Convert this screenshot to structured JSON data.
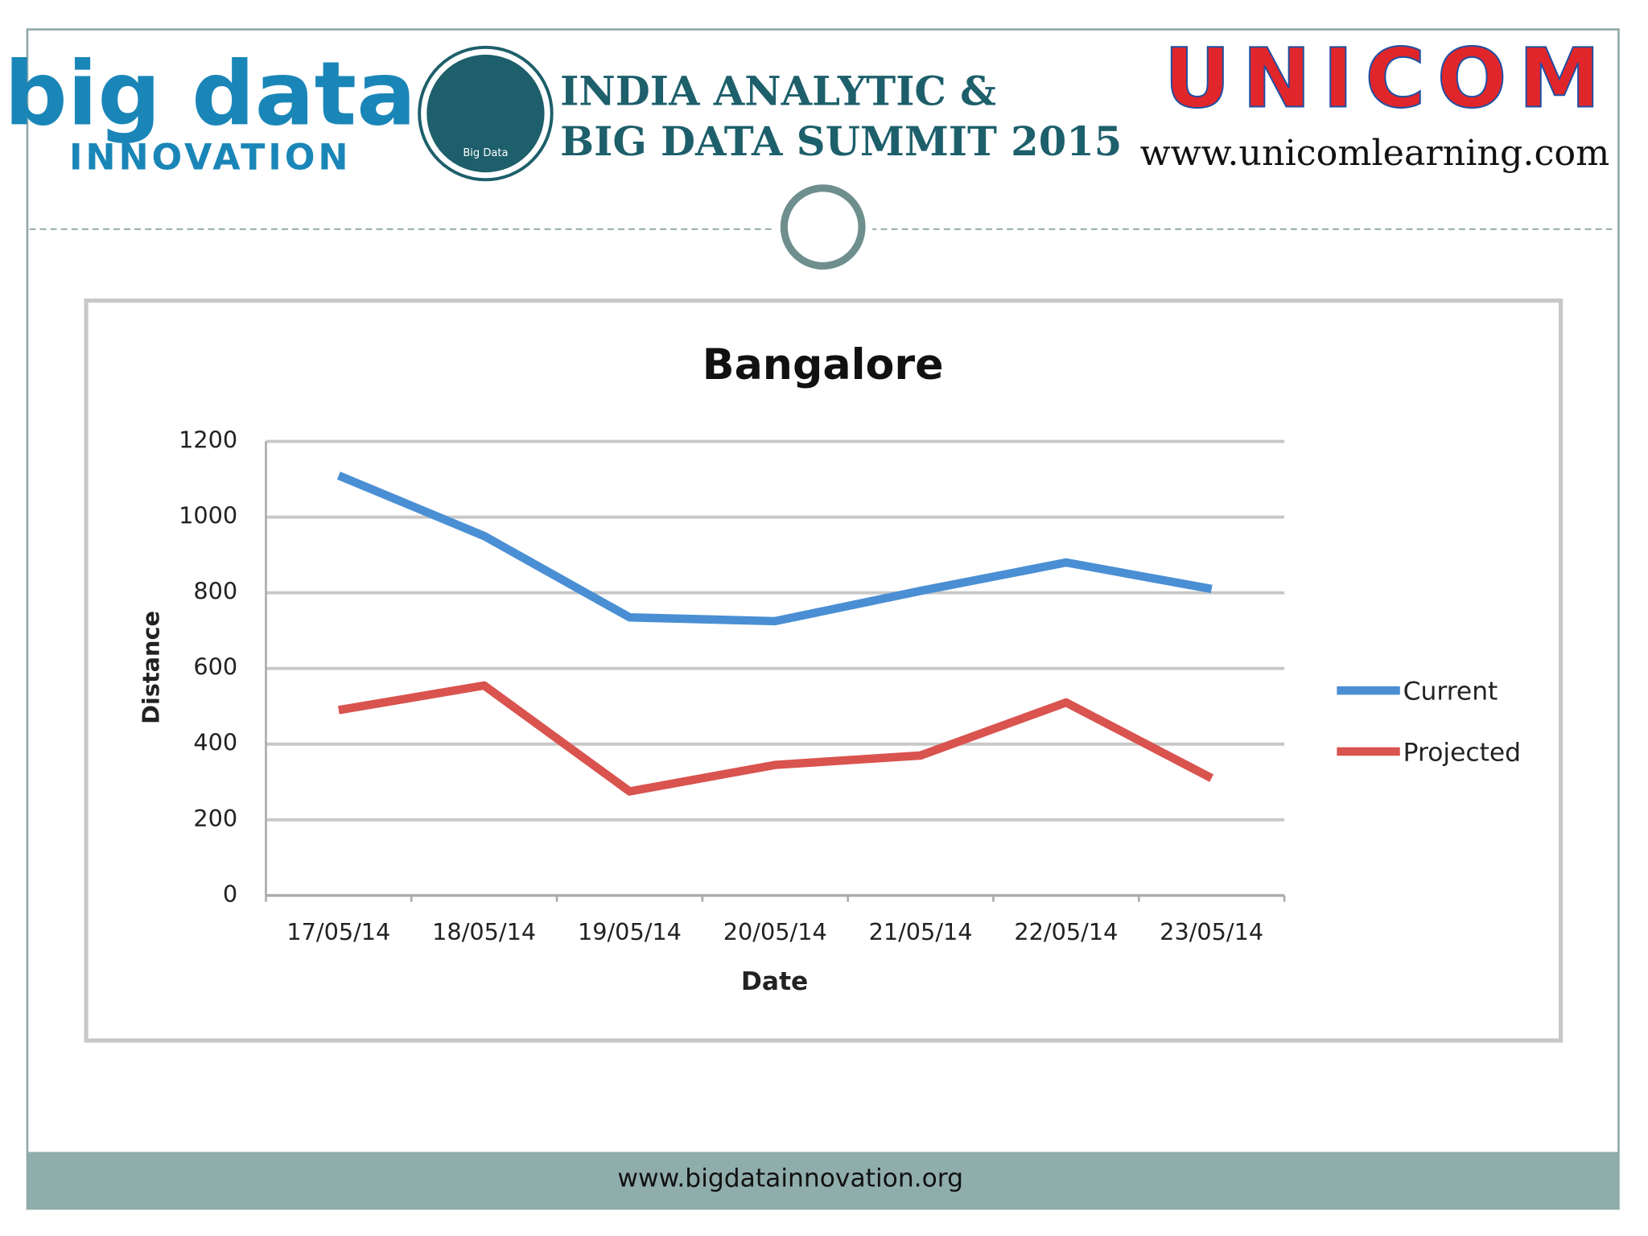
{
  "header": {
    "logo_top": "big data",
    "logo_bottom": "INNOVATION",
    "badge": "Big Data",
    "summit_line1": "INDIA ANALYTIC &",
    "summit_line2": "BIG DATA SUMMIT 2015",
    "unicom": "UNICOM",
    "unicom_url": "www.unicomlearning.com"
  },
  "footer": {
    "url": "www.bigdatainnovation.org"
  },
  "chart_data": {
    "type": "line",
    "title": "Bangalore",
    "x_label": "Date",
    "y_label": "Distance",
    "categories": [
      "17/05/14",
      "18/05/14",
      "19/05/14",
      "20/05/14",
      "21/05/14",
      "22/05/14",
      "23/05/14"
    ],
    "series": [
      {
        "name": "Current",
        "color": "#4a8fd4",
        "values": [
          1110,
          950,
          735,
          725,
          805,
          880,
          810
        ]
      },
      {
        "name": "Projected",
        "color": "#d9534f",
        "values": [
          490,
          555,
          275,
          345,
          370,
          510,
          310
        ]
      }
    ],
    "ylim": [
      0,
      1200
    ],
    "yticks": [
      0,
      200,
      400,
      600,
      800,
      1000,
      1200
    ],
    "grid": true,
    "legend": "right"
  }
}
